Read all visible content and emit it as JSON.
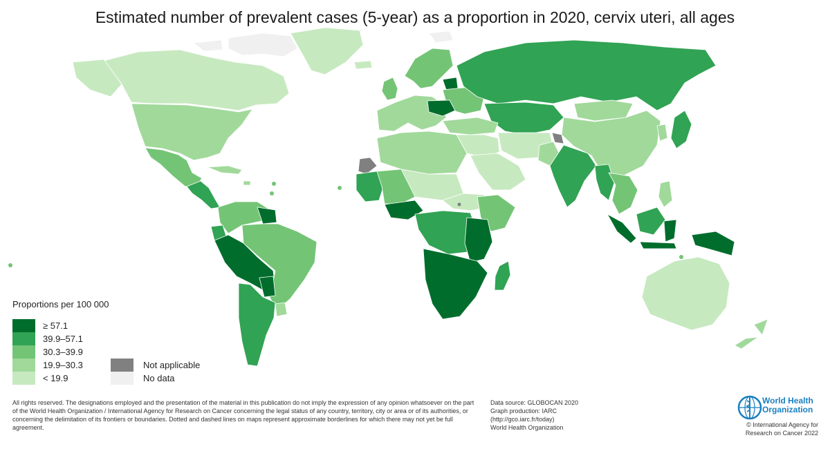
{
  "title": "Estimated number of prevalent cases (5-year) as a proportion in 2020, cervix uteri, all ages",
  "legend": {
    "title": "Proportions per 100 000",
    "classes": [
      {
        "label": "≥ 57.1",
        "color": "#006d2c"
      },
      {
        "label": "39.9–57.1",
        "color": "#31a354"
      },
      {
        "label": "30.3–39.9",
        "color": "#74c476"
      },
      {
        "label": "19.9–30.3",
        "color": "#a1d99b"
      },
      {
        "label": "< 19.9",
        "color": "#c7e9c0"
      }
    ],
    "special": [
      {
        "label": "Not applicable",
        "color": "#808080"
      },
      {
        "label": "No data",
        "color": "#f0f0f0"
      }
    ]
  },
  "footer": {
    "disclaimer": "All rights reserved. The designations employed and the presentation of the material in this publication do not imply the expression of any opinion whatsoever on the part of the World Health Organization / International Agency for Research on Cancer concerning the legal status of any country, territory, city or area or of its authorities, or concerning the delimitation of its frontiers or boundaries. Dotted and dashed lines on maps represent approximate borderlines for which there may not yet be full agreement.",
    "source": {
      "line1": "Data source: GLOBOCAN 2020",
      "line2": "Graph production: IARC",
      "line3": "(http://gco.iarc.fr/today)",
      "line4": "World Health Organization"
    },
    "who": {
      "line1": "World Health",
      "line2": "Organization",
      "icon": "who-emblem-icon"
    },
    "copyright": {
      "line1": "© International Agency for",
      "line2": "Research on Cancer 2022"
    }
  },
  "regions": [
    {
      "id": "canada",
      "class": 4
    },
    {
      "id": "greenland",
      "class": 4
    },
    {
      "id": "usa",
      "class": 3
    },
    {
      "id": "alaska",
      "class": 4
    },
    {
      "id": "mexico",
      "class": 2
    },
    {
      "id": "central-america",
      "class": 1
    },
    {
      "id": "caribbean",
      "class": 3
    },
    {
      "id": "colombia-venezuela",
      "class": 2
    },
    {
      "id": "guianas",
      "class": 0
    },
    {
      "id": "peru-bolivia",
      "class": 0
    },
    {
      "id": "ecuador",
      "class": 1
    },
    {
      "id": "brazil",
      "class": 2
    },
    {
      "id": "paraguay",
      "class": 0
    },
    {
      "id": "argentina-chile",
      "class": 1
    },
    {
      "id": "uruguay",
      "class": 3
    },
    {
      "id": "europe-west",
      "class": 3
    },
    {
      "id": "scandinavia",
      "class": 2
    },
    {
      "id": "uk-ireland",
      "class": 2
    },
    {
      "id": "eastern-europe",
      "class": 2
    },
    {
      "id": "romania",
      "class": 0
    },
    {
      "id": "baltics",
      "class": 0
    },
    {
      "id": "iceland",
      "class": 4
    },
    {
      "id": "russia",
      "class": 1
    },
    {
      "id": "central-asia",
      "class": 1
    },
    {
      "id": "turkey-caucasus",
      "class": 3
    },
    {
      "id": "north-africa",
      "class": 3
    },
    {
      "id": "sahara-west",
      "class": 4
    },
    {
      "id": "west-africa-coast",
      "class": 1
    },
    {
      "id": "west-africa-inner",
      "class": 2
    },
    {
      "id": "guinea-coast",
      "class": 0
    },
    {
      "id": "sahel-east",
      "class": 4
    },
    {
      "id": "middle-east",
      "class": 4
    },
    {
      "id": "arabia",
      "class": 4
    },
    {
      "id": "iran-afghanistan",
      "class": 4
    },
    {
      "id": "horn-of-africa",
      "class": 2
    },
    {
      "id": "central-africa",
      "class": 1
    },
    {
      "id": "east-africa",
      "class": 0
    },
    {
      "id": "southern-africa",
      "class": 0
    },
    {
      "id": "madagascar",
      "class": 1
    },
    {
      "id": "india",
      "class": 1
    },
    {
      "id": "pakistan",
      "class": 3
    },
    {
      "id": "china",
      "class": 3
    },
    {
      "id": "mongolia",
      "class": 3
    },
    {
      "id": "myanmar",
      "class": 1
    },
    {
      "id": "thailand-indochina",
      "class": 2
    },
    {
      "id": "japan",
      "class": 1
    },
    {
      "id": "korea",
      "class": 3
    },
    {
      "id": "philippines",
      "class": 3
    },
    {
      "id": "indonesia",
      "class": 0
    },
    {
      "id": "borneo",
      "class": 1
    },
    {
      "id": "new-guinea",
      "class": 0
    },
    {
      "id": "australia",
      "class": 4
    },
    {
      "id": "new-zealand",
      "class": 3
    },
    {
      "id": "arctic-islands",
      "class": 5
    },
    {
      "id": "svalbard",
      "class": 5
    },
    {
      "id": "western-sahara",
      "class": 6
    },
    {
      "id": "kashmir",
      "class": 6
    }
  ]
}
